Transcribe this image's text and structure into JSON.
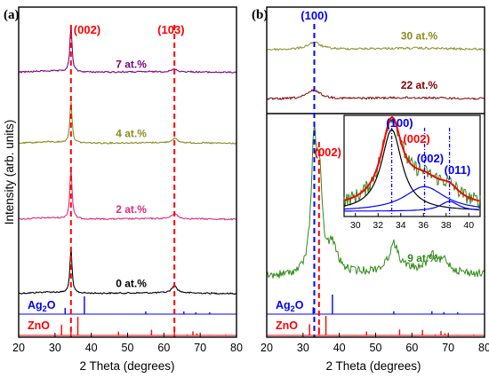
{
  "chart_data": [
    {
      "panel": "(a)",
      "type": "line",
      "xlabel": "2 Theta (degrees)",
      "ylabel": "Intensity (arb. units)",
      "xlim": [
        20,
        80
      ],
      "x_ticks": [
        "20",
        "30",
        "40",
        "50",
        "60",
        "70",
        "80"
      ],
      "series": [
        {
          "name": "0 at.%",
          "color": "#000000",
          "peaks": [
            {
              "x": 34.4,
              "height": 50
            },
            {
              "x": 62.9,
              "height": 8
            }
          ],
          "baseline_rel": 0.87
        },
        {
          "name": "2 at.%",
          "color": "#e0287f",
          "peaks": [
            {
              "x": 34.4,
              "height": 58
            },
            {
              "x": 62.9,
              "height": 6
            }
          ],
          "baseline_rel": 0.645
        },
        {
          "name": "4 at.%",
          "color": "#8c8c1e",
          "peaks": [
            {
              "x": 34.4,
              "height": 48
            },
            {
              "x": 62.9,
              "height": 5
            }
          ],
          "baseline_rel": 0.415
        },
        {
          "name": "7 at.%",
          "color": "#800080",
          "peaks": [
            {
              "x": 34.4,
              "height": 52
            },
            {
              "x": 62.9,
              "height": 3
            }
          ],
          "baseline_rel": 0.2
        }
      ],
      "peak_markers": [
        {
          "label": "(002)",
          "x": 34.4
        },
        {
          "label": "(103)",
          "x": 62.9
        }
      ],
      "reference_patterns": [
        {
          "name": "Ag2O",
          "label_main": "Ag",
          "label_sub": "2",
          "label_tail": "O",
          "color": "#0000ff",
          "lines": [
            {
              "x": 32.8,
              "h": 0.35
            },
            {
              "x": 38.1,
              "h": 1.0
            },
            {
              "x": 55.0,
              "h": 0.15
            },
            {
              "x": 65.5,
              "h": 0.15
            },
            {
              "x": 68.8,
              "h": 0.1
            },
            {
              "x": 72.6,
              "h": 0.1
            }
          ]
        },
        {
          "name": "ZnO",
          "label_main": "ZnO",
          "label_sub": "",
          "label_tail": "",
          "color": "#ff0000",
          "lines": [
            {
              "x": 31.8,
              "h": 0.57
            },
            {
              "x": 34.4,
              "h": 0.42
            },
            {
              "x": 36.3,
              "h": 1.0
            },
            {
              "x": 47.5,
              "h": 0.2
            },
            {
              "x": 56.6,
              "h": 0.3
            },
            {
              "x": 62.9,
              "h": 0.28
            },
            {
              "x": 66.4,
              "h": 0.05
            },
            {
              "x": 68.0,
              "h": 0.22
            },
            {
              "x": 69.1,
              "h": 0.11
            },
            {
              "x": 72.6,
              "h": 0.03
            },
            {
              "x": 77.0,
              "h": 0.04
            }
          ]
        }
      ]
    },
    {
      "panel": "(b)",
      "type": "line",
      "xlabel": "2 Theta (degrees)",
      "xlim": [
        20,
        80
      ],
      "x_ticks": [
        "20",
        "30",
        "40",
        "50",
        "60",
        "70",
        "80"
      ],
      "series": [
        {
          "name": "30 at.%",
          "color": "#8c8c1e",
          "peaks": [
            {
              "x": 33.0,
              "height": 8
            }
          ],
          "baseline_rel": 0.13
        },
        {
          "name": "22 at.%",
          "color": "#800000",
          "peaks": [
            {
              "x": 33.0,
              "height": 10
            }
          ],
          "baseline_rel": 0.28
        },
        {
          "name": "9 at.%",
          "color": "#2e8b17",
          "peaks": [
            {
              "x": 33.0,
              "height": 140
            },
            {
              "x": 34.5,
              "height": 95
            },
            {
              "x": 38.1,
              "height": 30
            },
            {
              "x": 55.0,
              "height": 30
            },
            {
              "x": 65.5,
              "height": 16
            },
            {
              "x": 69.0,
              "height": 12
            }
          ],
          "baseline_rel": 0.82
        }
      ],
      "peak_markers": [
        {
          "label": "(100)",
          "x": 33.1,
          "color": "#0000ff"
        },
        {
          "label": "(002)",
          "x": 34.4,
          "color": "#ff0000"
        }
      ],
      "reference_patterns": [
        {
          "name": "Ag2O",
          "label_main": "Ag",
          "label_sub": "2",
          "label_tail": "O",
          "color": "#0000ff",
          "lines": [
            {
              "x": 32.8,
              "h": 0.35
            },
            {
              "x": 38.1,
              "h": 1.0
            },
            {
              "x": 55.0,
              "h": 0.15
            },
            {
              "x": 65.5,
              "h": 0.15
            },
            {
              "x": 68.8,
              "h": 0.1
            },
            {
              "x": 72.6,
              "h": 0.1
            }
          ]
        },
        {
          "name": "ZnO",
          "label_main": "ZnO",
          "label_sub": "",
          "label_tail": "",
          "color": "#ff0000",
          "lines": [
            {
              "x": 31.8,
              "h": 0.57
            },
            {
              "x": 34.4,
              "h": 0.42
            },
            {
              "x": 36.3,
              "h": 1.0
            },
            {
              "x": 47.5,
              "h": 0.2
            },
            {
              "x": 56.6,
              "h": 0.3
            },
            {
              "x": 62.9,
              "h": 0.28
            },
            {
              "x": 66.4,
              "h": 0.05
            },
            {
              "x": 68.0,
              "h": 0.22
            },
            {
              "x": 69.1,
              "h": 0.11
            },
            {
              "x": 72.6,
              "h": 0.03
            },
            {
              "x": 77.0,
              "h": 0.04
            }
          ]
        }
      ],
      "inset": {
        "type": "line",
        "xlim": [
          29,
          41
        ],
        "x_ticks": [
          "30",
          "32",
          "34",
          "36",
          "38",
          "40"
        ],
        "data_color": "#2e8b17",
        "fit_color": "#ff0000",
        "components": [
          {
            "label": "(100)",
            "center": 33.2,
            "height": 1.0,
            "width": 1.1,
            "color": "#000000",
            "label_color": "#0000ff"
          },
          {
            "label": "(002)",
            "center": 36.0,
            "height": 0.32,
            "width": 2.2,
            "color": "#0000ff",
            "label_color": "#ff0000"
          },
          {
            "label": "(002)",
            "center": 36.1,
            "height": 0.3,
            "width": 2.2,
            "color": "#0000ff",
            "label_color": "#0000ff"
          },
          {
            "label": "(011)",
            "center": 38.3,
            "height": 0.12,
            "width": 1.0,
            "color": "#0000ff",
            "label_color": "#0000ff"
          }
        ],
        "markers": [
          {
            "x": 33.2
          },
          {
            "x": 36.1
          },
          {
            "x": 38.3
          }
        ]
      }
    }
  ]
}
